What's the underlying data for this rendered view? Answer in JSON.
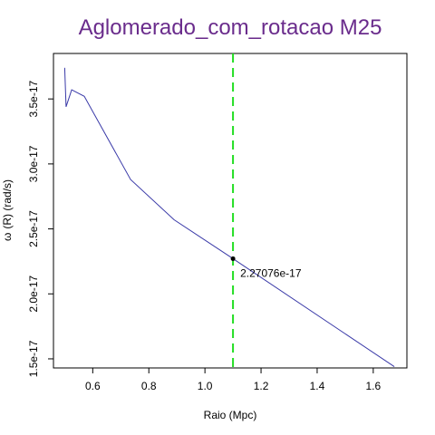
{
  "chart_data": {
    "type": "line",
    "title": "Aglomerado_com_rotacao M25",
    "xlabel": "Raio (Mpc)",
    "ylabel_symbol": "ω",
    "ylabel": "(R) (rad/s)",
    "xlim": [
      0.46,
      1.72
    ],
    "ylim": [
      1.43e-17,
      3.85e-17
    ],
    "x_ticks": [
      {
        "value": 0.6,
        "label": "0.6"
      },
      {
        "value": 0.8,
        "label": "0.8"
      },
      {
        "value": 1.0,
        "label": "1.0"
      },
      {
        "value": 1.2,
        "label": "1.2"
      },
      {
        "value": 1.4,
        "label": "1.4"
      },
      {
        "value": 1.6,
        "label": "1.6"
      }
    ],
    "y_ticks": [
      {
        "value": 1.5e-17,
        "label": "1.5e-17"
      },
      {
        "value": 2e-17,
        "label": "2.0e-17"
      },
      {
        "value": 2.5e-17,
        "label": "2.5e-17"
      },
      {
        "value": 3e-17,
        "label": "3.0e-17"
      },
      {
        "value": 3.5e-17,
        "label": "3.5e-17"
      }
    ],
    "series": [
      {
        "color": "#3a3aa8",
        "x": [
          0.5,
          0.505,
          0.525,
          0.57,
          0.735,
          0.89,
          1.1,
          1.675
        ],
        "y": [
          3.74e-17,
          3.44e-17,
          3.57e-17,
          3.52e-17,
          2.88e-17,
          2.57e-17,
          2.27076e-17,
          1.44e-17
        ]
      }
    ],
    "vline": {
      "x": 1.1,
      "color": "#22dd22",
      "style": "dashed"
    },
    "marker": {
      "x": 1.1,
      "y": 2.27076e-17,
      "label": "2.27076e-17"
    },
    "grid": false,
    "title_color": "#6a2c8c"
  }
}
